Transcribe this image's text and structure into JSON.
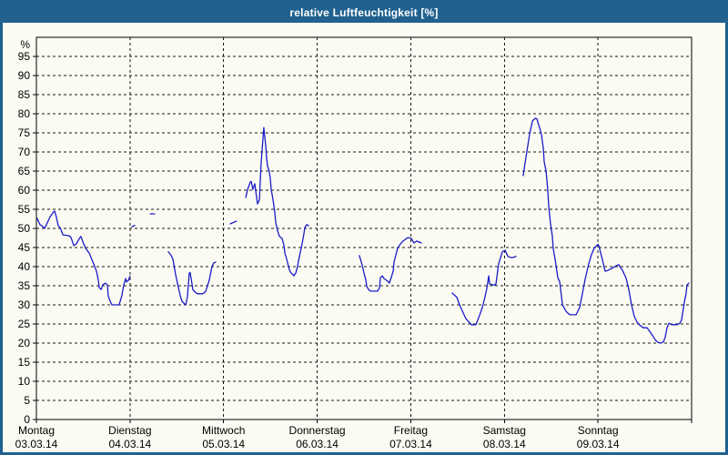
{
  "window": {
    "title": "relative Luftfeuchtigkeit [%]"
  },
  "colors": {
    "titlebar": "#20618f",
    "window_border": "#20618f",
    "background": "#fbfbf3",
    "grid": "#1a1a1a",
    "series_line": "#1b1bc8",
    "title_text": "#ffffff",
    "axis_text": "#000000"
  },
  "chart_data": {
    "type": "line",
    "title": "relative Luftfeuchtigkeit [%]",
    "ylabel": "%",
    "ylim": [
      0,
      100
    ],
    "ytick_step": 5,
    "y_tick_labels": [
      "0",
      "5",
      "10",
      "15",
      "20",
      "25",
      "30",
      "35",
      "40",
      "45",
      "50",
      "55",
      "60",
      "65",
      "70",
      "75",
      "80",
      "85",
      "90",
      "95"
    ],
    "x_unit": "hours since Montag 03.03.14 00:00",
    "xlim": [
      0,
      168
    ],
    "grid": "dashed horizontal lines every 5 %, dashed vertical lines at day boundaries",
    "legend": "none",
    "days": [
      {
        "name": "Montag",
        "date": "03.03.14"
      },
      {
        "name": "Dienstag",
        "date": "04.03.14"
      },
      {
        "name": "Mittwoch",
        "date": "05.03.14"
      },
      {
        "name": "Donnerstag",
        "date": "06.03.14"
      },
      {
        "name": "Freitag",
        "date": "07.03.14"
      },
      {
        "name": "Samstag",
        "date": "08.03.14"
      },
      {
        "name": "Sonntag",
        "date": "09.03.14"
      }
    ],
    "series": [
      {
        "name": "relative Luftfeuchtigkeit",
        "color": "#1b1bc8",
        "note": "measurement curve with data gaps; points are [hour, percent]",
        "segments": [
          [
            [
              0.2,
              52.6
            ],
            [
              0.9,
              51
            ],
            [
              1.4,
              50.7
            ],
            [
              2.1,
              50
            ],
            [
              2.8,
              51.5
            ],
            [
              3.5,
              53
            ],
            [
              4.4,
              54.3
            ],
            [
              4.7,
              54.5
            ],
            [
              5.1,
              53
            ],
            [
              5.6,
              50.7
            ],
            [
              6.1,
              50.2
            ],
            [
              6.8,
              48.3
            ],
            [
              7.7,
              48.2
            ],
            [
              8.4,
              48.1
            ],
            [
              8.9,
              47.6
            ],
            [
              9.6,
              45.5
            ],
            [
              10.3,
              46
            ],
            [
              11,
              47.3
            ],
            [
              11.4,
              47.9
            ],
            [
              12.1,
              46
            ],
            [
              12.6,
              44.8
            ],
            [
              13.5,
              43.6
            ],
            [
              13.8,
              42.9
            ],
            [
              14.7,
              40.7
            ],
            [
              15.4,
              38.8
            ],
            [
              15.9,
              36.4
            ],
            [
              16.1,
              34.5
            ],
            [
              16.6,
              34
            ],
            [
              17,
              35.2
            ],
            [
              17.7,
              35.7
            ],
            [
              18.2,
              35.2
            ],
            [
              18.4,
              32.4
            ],
            [
              18.9,
              30.9
            ],
            [
              19.4,
              30
            ],
            [
              21.2,
              30
            ],
            [
              21.9,
              32.4
            ],
            [
              22.4,
              35.2
            ],
            [
              22.9,
              36.9
            ],
            [
              23.1,
              36
            ],
            [
              23.6,
              36.4
            ],
            [
              24,
              37.5
            ]
          ],
          [
            [
              24.5,
              50.4
            ],
            [
              25.2,
              50.8
            ]
          ],
          [
            [
              29.2,
              53.8
            ],
            [
              30.3,
              53.8
            ]
          ],
          [
            [
              33.8,
              43.9
            ],
            [
              34.5,
              43
            ],
            [
              35,
              42
            ],
            [
              35.7,
              37.9
            ],
            [
              36.2,
              35.5
            ],
            [
              36.9,
              32.4
            ],
            [
              37.3,
              31
            ],
            [
              37.8,
              30.4
            ],
            [
              38.3,
              30
            ],
            [
              38.7,
              32
            ],
            [
              39.2,
              38.3
            ],
            [
              39.4,
              38.5
            ],
            [
              39.9,
              35.5
            ],
            [
              40.1,
              34
            ],
            [
              40.6,
              33.4
            ],
            [
              41.3,
              32.9
            ],
            [
              42.7,
              32.9
            ],
            [
              43.4,
              33.5
            ],
            [
              44.3,
              36.4
            ],
            [
              45,
              40
            ],
            [
              45.5,
              41
            ],
            [
              46,
              41.2
            ]
          ],
          [
            [
              49.7,
              51.2
            ],
            [
              51.3,
              51.9
            ]
          ],
          [
            [
              53.7,
              58.1
            ],
            [
              54.1,
              60
            ],
            [
              54.8,
              62.1
            ],
            [
              55.1,
              62.3
            ],
            [
              55.5,
              60.2
            ],
            [
              56,
              61.7
            ],
            [
              56.2,
              60
            ],
            [
              56.7,
              56.4
            ],
            [
              57.2,
              57.5
            ],
            [
              57.6,
              66.9
            ],
            [
              58.3,
              76.4
            ],
            [
              58.8,
              71.7
            ],
            [
              59,
              68.5
            ],
            [
              59.3,
              66.2
            ],
            [
              59.7,
              65
            ],
            [
              60,
              62.9
            ],
            [
              60.2,
              60.2
            ],
            [
              60.7,
              57.4
            ],
            [
              61.1,
              54.3
            ],
            [
              61.4,
              51.4
            ],
            [
              61.8,
              49.5
            ],
            [
              62.3,
              47.9
            ],
            [
              63,
              47.4
            ],
            [
              63.5,
              45.5
            ],
            [
              63.7,
              43.6
            ],
            [
              64.2,
              41.9
            ],
            [
              64.6,
              40.2
            ],
            [
              64.9,
              39.1
            ],
            [
              65.3,
              38.3
            ],
            [
              65.8,
              37.9
            ],
            [
              66,
              37.6
            ],
            [
              66.5,
              38.3
            ],
            [
              67,
              40.2
            ],
            [
              67.2,
              41.5
            ],
            [
              67.7,
              43.8
            ],
            [
              68.1,
              45.9
            ],
            [
              68.6,
              48.6
            ],
            [
              68.8,
              50.2
            ],
            [
              69.3,
              51
            ],
            [
              69.8,
              50.7
            ]
          ],
          [
            [
              82.8,
              42.9
            ],
            [
              83.5,
              40.5
            ],
            [
              84,
              38.3
            ],
            [
              84.5,
              36.4
            ],
            [
              84.7,
              34.8
            ],
            [
              85.2,
              34
            ],
            [
              85.6,
              33.6
            ],
            [
              87.5,
              33.6
            ],
            [
              88,
              34.5
            ],
            [
              88.2,
              37.1
            ],
            [
              88.7,
              37.6
            ],
            [
              89.1,
              36.9
            ],
            [
              89.8,
              36.4
            ],
            [
              90.3,
              36
            ],
            [
              90.5,
              35.7
            ],
            [
              91.5,
              38.8
            ],
            [
              91.7,
              41.2
            ],
            [
              92.2,
              43.1
            ],
            [
              92.6,
              44.8
            ],
            [
              93.3,
              45.9
            ],
            [
              94,
              46.7
            ],
            [
              95.2,
              47.6
            ],
            [
              96.1,
              47.4
            ],
            [
              96.8,
              46.2
            ],
            [
              97.5,
              46.7
            ],
            [
              98.2,
              46.4
            ],
            [
              98.7,
              46.2
            ]
          ],
          [
            [
              106.6,
              33.1
            ],
            [
              107.8,
              32
            ],
            [
              108.5,
              30
            ],
            [
              109,
              28.9
            ],
            [
              110.1,
              26.4
            ],
            [
              111.5,
              24.8
            ],
            [
              112.7,
              24.8
            ],
            [
              113.6,
              27.2
            ],
            [
              114.3,
              29.2
            ],
            [
              115,
              32
            ],
            [
              115.5,
              34.3
            ],
            [
              116,
              37.6
            ],
            [
              116.2,
              35.5
            ],
            [
              117.1,
              35.2
            ],
            [
              117.8,
              35.3
            ],
            [
              118.5,
              40.7
            ],
            [
              119.5,
              43.9
            ],
            [
              120.2,
              44.3
            ],
            [
              120.9,
              42.7
            ],
            [
              121.8,
              42.3
            ],
            [
              122.5,
              42.5
            ],
            [
              123,
              42.7
            ]
          ],
          [
            [
              124.8,
              63.8
            ],
            [
              125.5,
              68.5
            ],
            [
              126.5,
              74.8
            ],
            [
              127.2,
              78.1
            ],
            [
              127.9,
              78.8
            ],
            [
              128.3,
              78.7
            ],
            [
              129,
              76.4
            ],
            [
              129.5,
              74.5
            ],
            [
              130,
              70.9
            ],
            [
              130.2,
              67.4
            ],
            [
              130.7,
              65
            ],
            [
              131.1,
              60.2
            ],
            [
              131.4,
              55.5
            ],
            [
              131.8,
              51.4
            ],
            [
              132.3,
              47.9
            ],
            [
              132.5,
              44.8
            ],
            [
              133,
              41.9
            ],
            [
              133.7,
              37.1
            ],
            [
              134.2,
              36
            ],
            [
              134.9,
              30
            ],
            [
              135.8,
              28.3
            ],
            [
              136.5,
              27.6
            ],
            [
              137,
              27.4
            ],
            [
              138.4,
              27.4
            ],
            [
              139.3,
              29.3
            ],
            [
              140,
              32.9
            ],
            [
              140.7,
              36.7
            ],
            [
              141.6,
              40.7
            ],
            [
              142.3,
              43.1
            ],
            [
              143,
              44.8
            ],
            [
              144,
              45.8
            ],
            [
              144.2,
              45.5
            ],
            [
              145.1,
              41.9
            ],
            [
              145.8,
              38.8
            ],
            [
              146.5,
              39
            ],
            [
              147.5,
              39.5
            ],
            [
              148.6,
              40.2
            ],
            [
              149.3,
              40.5
            ],
            [
              150.3,
              39
            ],
            [
              151.2,
              37
            ],
            [
              151.9,
              34
            ],
            [
              152.6,
              30
            ],
            [
              153.3,
              27
            ],
            [
              154,
              25.5
            ],
            [
              154.7,
              24.7
            ],
            [
              155.6,
              24
            ],
            [
              156.6,
              24
            ],
            [
              157.3,
              23
            ],
            [
              158,
              22
            ],
            [
              158.7,
              20.8
            ],
            [
              159.4,
              20.2
            ],
            [
              160.1,
              20
            ],
            [
              160.8,
              20.3
            ],
            [
              161.2,
              21.5
            ],
            [
              161.7,
              24
            ],
            [
              162.2,
              25.2
            ],
            [
              162.9,
              24.8
            ],
            [
              164.3,
              24.8
            ],
            [
              165,
              25.2
            ],
            [
              165.4,
              26
            ],
            [
              166.1,
              30.5
            ],
            [
              166.6,
              33
            ],
            [
              166.8,
              35.2
            ],
            [
              167.3,
              35.7
            ]
          ]
        ]
      }
    ]
  }
}
